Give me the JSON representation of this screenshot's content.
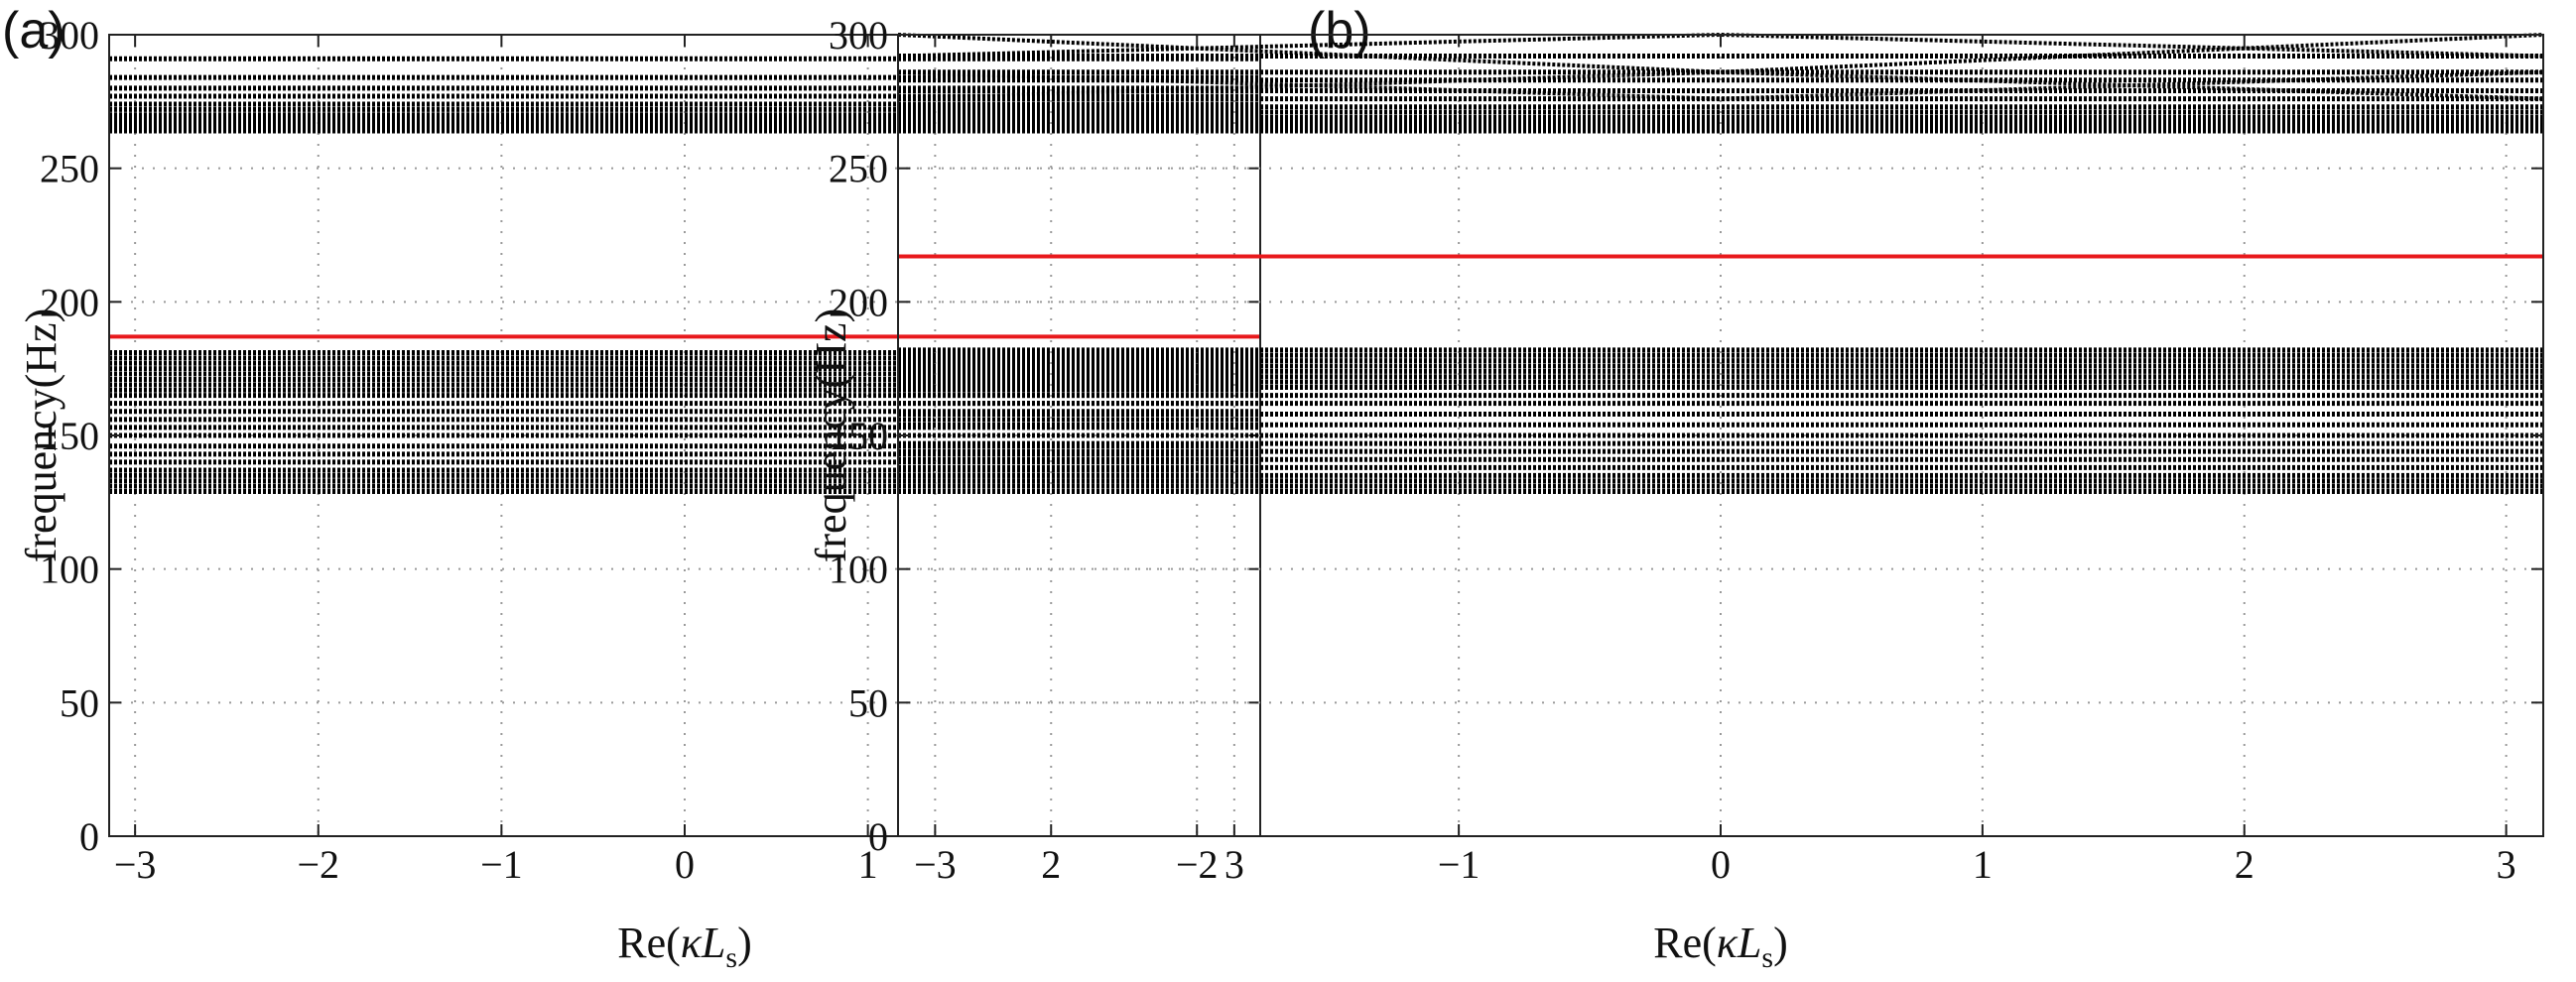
{
  "chart_data": [
    {
      "panel_label": "(a)",
      "type": "line",
      "xlabel": {
        "prefix": "Re(",
        "kappa": "κ",
        "L": "L",
        "sub": "s",
        "suffix": ")"
      },
      "ylabel": "frequency(Hz)",
      "xlim": [
        -3.14159,
        3.14159
      ],
      "ylim": [
        0,
        300
      ],
      "xticks": [
        -3,
        -2,
        -1,
        0,
        1,
        2,
        3
      ],
      "xtick_labels": [
        "−3",
        "−2",
        "−1",
        "0",
        "1",
        "2",
        "3"
      ],
      "yticks": [
        0,
        50,
        100,
        150,
        200,
        250,
        300
      ],
      "ytick_labels": [
        "0",
        "50",
        "100",
        "150",
        "200",
        "250",
        "300"
      ],
      "grid": true,
      "series": [
        {
          "color": "#000000",
          "values": [
            129,
            131,
            133,
            135,
            137,
            140,
            143,
            146,
            150,
            153,
            156,
            159,
            162,
            165,
            167,
            169,
            171,
            173,
            175,
            177,
            179,
            181,
            264,
            265,
            266,
            267,
            268,
            269,
            270,
            272,
            274,
            277,
            280,
            284,
            291
          ]
        },
        {
          "color": "#e8191c",
          "values": [
            187
          ]
        }
      ]
    },
    {
      "panel_label": "(b)",
      "type": "line",
      "xlabel": {
        "prefix": "Re(",
        "kappa": "κ",
        "L": "L",
        "sub": "s",
        "suffix": ")"
      },
      "ylabel": "frequency(Hz)",
      "xlim": [
        -3.14159,
        3.14159
      ],
      "ylim": [
        0,
        300
      ],
      "xticks": [
        -3,
        -2,
        -1,
        0,
        1,
        2,
        3
      ],
      "xtick_labels": [
        "−3",
        "−2",
        "−1",
        "0",
        "1",
        "2",
        "3"
      ],
      "yticks": [
        0,
        50,
        100,
        150,
        200,
        250,
        300
      ],
      "ytick_labels": [
        "0",
        "50",
        "100",
        "150",
        "200",
        "250",
        "300"
      ],
      "grid": true,
      "series": [
        {
          "color": "#000000",
          "values": [
            129,
            131,
            133,
            135,
            138,
            141,
            144,
            147,
            150,
            154,
            158,
            162,
            165,
            168,
            170,
            172,
            174,
            176,
            178,
            180,
            182,
            264,
            265,
            266,
            267,
            268,
            269,
            271,
            273,
            276,
            279,
            283,
            286,
            292
          ]
        },
        {
          "color": "#e8191c",
          "values": [
            217
          ]
        }
      ],
      "crossing_bands": [
        {
          "ends": 292,
          "center": 300
        },
        {
          "ends": 300,
          "center": 286
        },
        {
          "ends": 286,
          "center": 276
        },
        {
          "ends": 276,
          "center": 286
        }
      ]
    }
  ]
}
